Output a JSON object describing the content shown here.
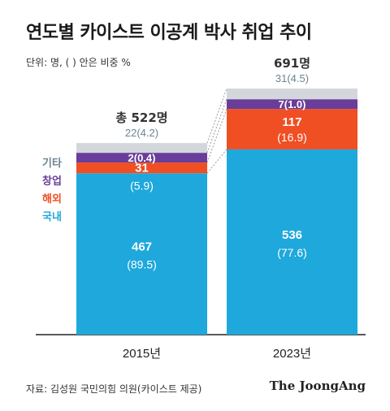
{
  "header": {
    "title": "연도별 카이스트 이공계 박사 취업 추이",
    "unit": "단위: 명, ( ) 안은 비중 %"
  },
  "footer": {
    "source": "자료: 김성원 국민의힘 의원(카이스트 제공)",
    "brand": "The JoongAng"
  },
  "colors": {
    "국내": "#1ea8dc",
    "해외": "#f04e23",
    "창업": "#6a3d9a",
    "기타": "#d3d7dc",
    "국내_text": "#ffffff",
    "해외_text": "#ffffff",
    "창업_text": "#ffffff",
    "기타_text": "#6b8593",
    "legend_기타": "#6b8593",
    "legend_창업": "#6a3d9a",
    "legend_해외": "#f04e23",
    "legend_국내": "#1ea8dc"
  },
  "chart_data": {
    "type": "bar",
    "stacked": true,
    "categories": [
      "2015년",
      "2023년"
    ],
    "totals": [
      522,
      691
    ],
    "total_labels": [
      "총 522명",
      "691명"
    ],
    "series": [
      {
        "name": "국내",
        "values": [
          467,
          536
        ],
        "shares": [
          89.5,
          77.6
        ],
        "labels": [
          "467",
          "536"
        ],
        "share_labels": [
          "(89.5)",
          "(77.6)"
        ]
      },
      {
        "name": "해외",
        "values": [
          31,
          117
        ],
        "shares": [
          5.9,
          16.9
        ],
        "labels": [
          "31",
          "117"
        ],
        "share_labels": [
          "(5.9)",
          "(16.9)"
        ]
      },
      {
        "name": "창업",
        "values": [
          2,
          7
        ],
        "shares": [
          0.4,
          1.0
        ],
        "labels": [
          "2(0.4)",
          "7(1.0)"
        ]
      },
      {
        "name": "기타",
        "values": [
          22,
          31
        ],
        "shares": [
          4.2,
          4.5
        ],
        "labels": [
          "22(4.2)",
          "31(4.5)"
        ]
      }
    ],
    "legend": [
      "기타",
      "창업",
      "해외",
      "국내"
    ],
    "grid": false,
    "legend_position": "left of first bar"
  }
}
